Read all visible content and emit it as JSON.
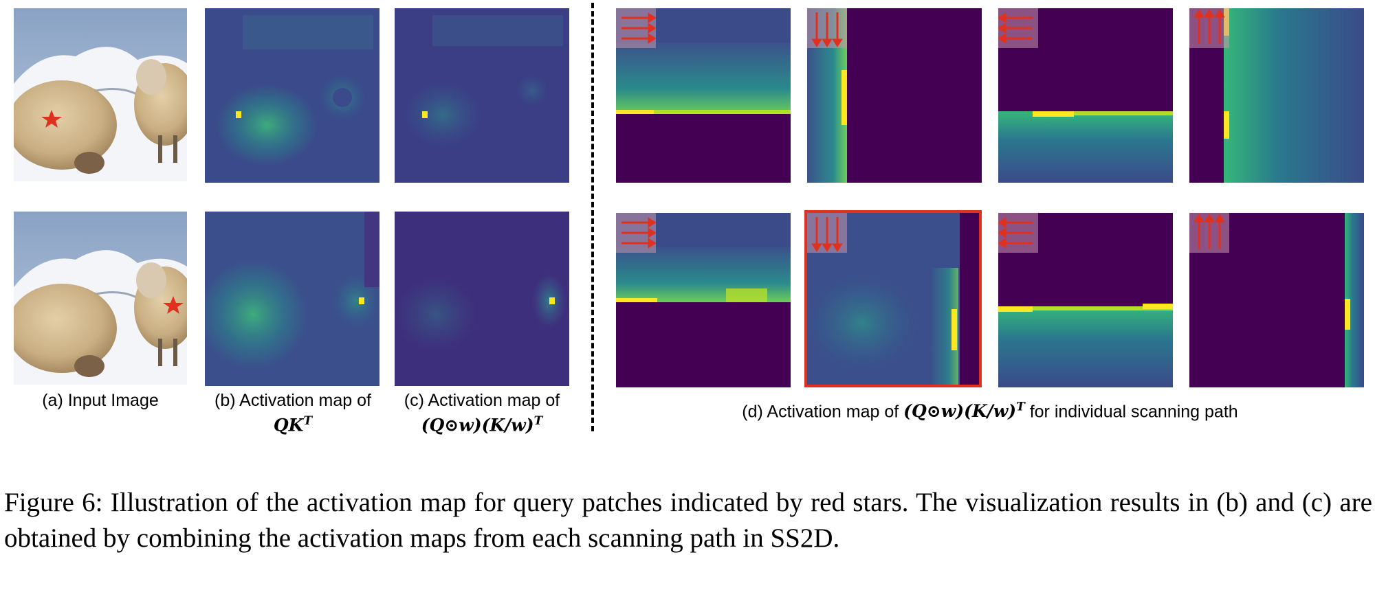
{
  "sublabels": {
    "a": "(a) Input Image",
    "b_line1": "(b) Activation map of",
    "b_math": "QK",
    "b_sup": "T",
    "c_line1": "(c) Activation map of",
    "c_math": "(Q⊙w)(K/w)",
    "c_sup": "T",
    "d_prefix": "(d) Activation map of",
    "d_math": "(Q⊙w)(K/w)",
    "d_sup": "T",
    "d_suffix": "for individual scanning path"
  },
  "caption": "Figure 6: Illustration of the activation map for query patches indicated by red stars. The visualization results in (b) and (c) are obtained by combining the activation maps from each scanning path in SS2D.",
  "scan_icons": [
    "horizontal-scan-icon",
    "vertical-scan-icon",
    "horizontal-reverse-scan-icon",
    "vertical-reverse-scan-icon"
  ],
  "colors": {
    "colormap_low": "#440154",
    "colormap_mid": "#21918c",
    "colormap_high": "#fde725",
    "query_star": "#e0301e",
    "highlight_border": "#e0301e"
  }
}
